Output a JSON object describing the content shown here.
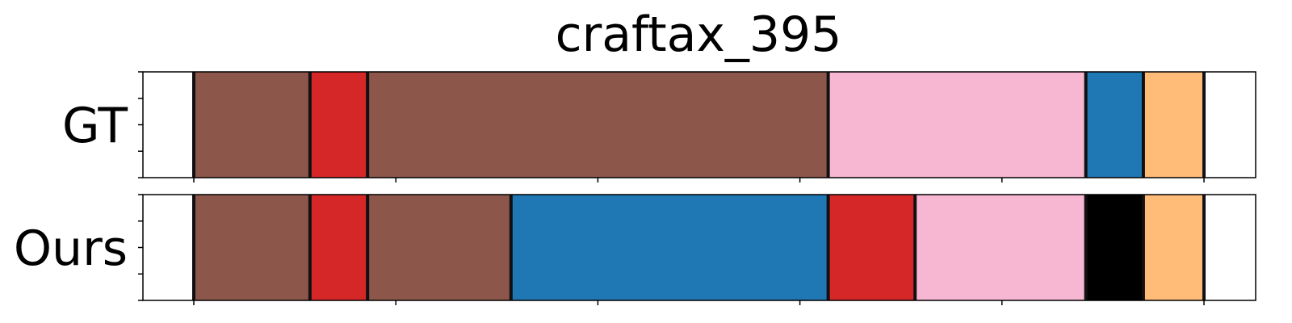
{
  "chart_data": {
    "type": "segmentation_timeline",
    "title": "craftax_395",
    "x_range": [
      0,
      1000
    ],
    "x_ticks": [
      50,
      250,
      450,
      650,
      850,
      1050
    ],
    "y_minor_ticks_per_row": 5,
    "colors": {
      "brown": "#8c564b",
      "red": "#d62728",
      "pink": "#f7b6d2",
      "blue": "#1f77b4",
      "orange": "#ffbb78",
      "black": "#000000"
    },
    "rows": [
      {
        "label": "GT",
        "segments": [
          {
            "start": 50,
            "end": 165,
            "color": "brown"
          },
          {
            "start": 165,
            "end": 222,
            "color": "red"
          },
          {
            "start": 222,
            "end": 678,
            "color": "brown"
          },
          {
            "start": 678,
            "end": 933,
            "color": "pink"
          },
          {
            "start": 933,
            "end": 990,
            "color": "blue"
          },
          {
            "start": 990,
            "end": 1050,
            "color": "orange"
          }
        ]
      },
      {
        "label": "Ours",
        "segments": [
          {
            "start": 50,
            "end": 165,
            "color": "brown"
          },
          {
            "start": 165,
            "end": 222,
            "color": "red"
          },
          {
            "start": 222,
            "end": 364,
            "color": "brown"
          },
          {
            "start": 364,
            "end": 678,
            "color": "blue"
          },
          {
            "start": 678,
            "end": 764,
            "color": "red"
          },
          {
            "start": 764,
            "end": 933,
            "color": "pink"
          },
          {
            "start": 933,
            "end": 990,
            "color": "black"
          },
          {
            "start": 990,
            "end": 1050,
            "color": "orange"
          }
        ]
      }
    ]
  }
}
